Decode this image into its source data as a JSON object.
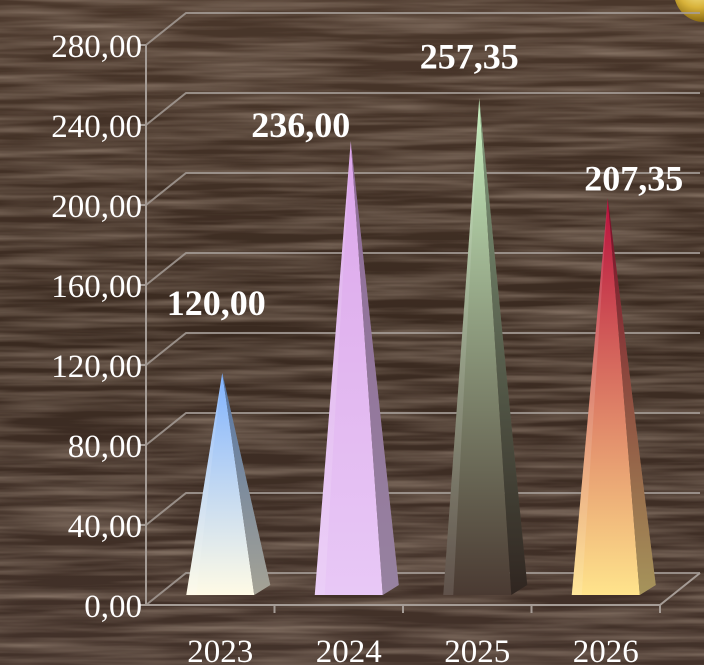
{
  "chart_data": {
    "type": "bar",
    "bar_shape": "pyramid",
    "categories": [
      "2023",
      "2024",
      "2025",
      "2026"
    ],
    "values": [
      120.0,
      236.0,
      257.35,
      207.35
    ],
    "value_labels": [
      "120,00",
      "236,00",
      "257,35",
      "207,35"
    ],
    "ylim": [
      0,
      280
    ],
    "y_ticks": [
      "0,00",
      "40,00",
      "80,00",
      "120,00",
      "160,00",
      "200,00",
      "240,00",
      "280,00"
    ],
    "grid": true,
    "legend": "none",
    "background": "dark wood texture",
    "colors": [
      {
        "top": "#7fb2ff",
        "bottom": "#fffbe6"
      },
      {
        "top": "#dca6ea",
        "bottom": "#e8c8f6"
      },
      {
        "top": "#c8f0c0",
        "bottom": "#4a3a32"
      },
      {
        "top": "#b8103c",
        "bottom": "#ffe48c"
      }
    ]
  }
}
